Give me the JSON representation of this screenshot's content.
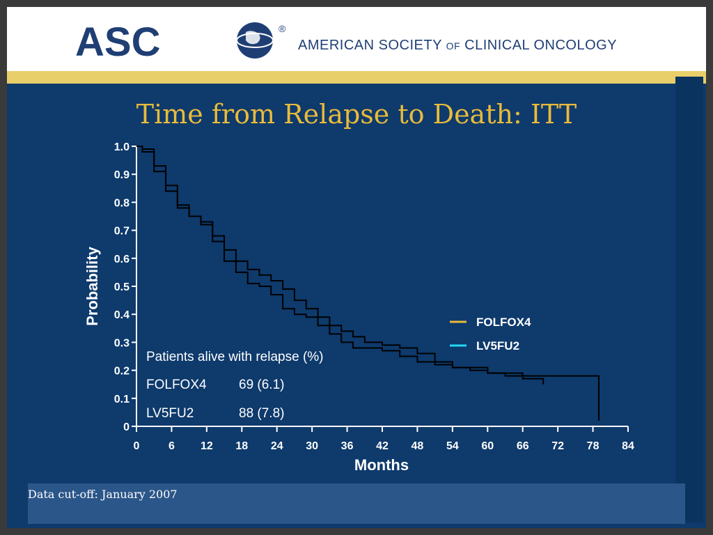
{
  "header": {
    "logo_text": "ASC",
    "registered": "®",
    "org_main": "AMERICAN SOCIETY ",
    "org_of": "OF",
    "org_end": " CLINICAL ONCOLOGY"
  },
  "colors": {
    "background": "#0e3a6c",
    "title": "#e9bb3b",
    "gold": "#e8cf6a",
    "folfox4": "#e9bb3b",
    "lv5fu2": "#26d9f2",
    "curve": "#000000"
  },
  "footer": {
    "text": "Data cut-off: January 2007"
  },
  "chart_data": {
    "type": "line",
    "title": "Time from Relapse to Death: ITT",
    "xlabel": "Months",
    "ylabel": "Probability",
    "xlim": [
      0,
      84
    ],
    "ylim": [
      0,
      1.0
    ],
    "xticks": [
      "0",
      "6",
      "12",
      "18",
      "24",
      "30",
      "36",
      "42",
      "48",
      "54",
      "60",
      "66",
      "72",
      "78",
      "84"
    ],
    "yticks": [
      "0",
      "0.1",
      "0.2",
      "0.3",
      "0.4",
      "0.5",
      "0.6",
      "0.7",
      "0.8",
      "0.9",
      "1.0"
    ],
    "grid": false,
    "legend_position": "right",
    "series": [
      {
        "name": "FOLFOX4",
        "color_key": "folfox4",
        "x": [
          0,
          1,
          3,
          5,
          7,
          9,
          11,
          13,
          15,
          17,
          19,
          21,
          23,
          25,
          27,
          29,
          31,
          33,
          35,
          37,
          39,
          42,
          45,
          48,
          51,
          54,
          57,
          60,
          63,
          66,
          69,
          69.5
        ],
        "y": [
          1.0,
          0.99,
          0.93,
          0.86,
          0.79,
          0.75,
          0.72,
          0.68,
          0.63,
          0.59,
          0.56,
          0.54,
          0.52,
          0.49,
          0.45,
          0.42,
          0.39,
          0.36,
          0.34,
          0.32,
          0.3,
          0.29,
          0.28,
          0.26,
          0.23,
          0.21,
          0.21,
          0.19,
          0.18,
          0.17,
          0.17,
          0.15
        ]
      },
      {
        "name": "LV5FU2",
        "color_key": "lv5fu2",
        "x": [
          0,
          1,
          3,
          5,
          7,
          9,
          11,
          13,
          15,
          17,
          19,
          21,
          23,
          25,
          27,
          29,
          31,
          33,
          35,
          37,
          39,
          42,
          45,
          48,
          51,
          54,
          57,
          60,
          63,
          66,
          70,
          74,
          78,
          79,
          79
        ],
        "y": [
          1.0,
          0.98,
          0.91,
          0.84,
          0.78,
          0.75,
          0.73,
          0.66,
          0.59,
          0.55,
          0.51,
          0.5,
          0.47,
          0.42,
          0.4,
          0.39,
          0.36,
          0.33,
          0.3,
          0.28,
          0.28,
          0.27,
          0.25,
          0.23,
          0.22,
          0.21,
          0.2,
          0.19,
          0.19,
          0.18,
          0.18,
          0.18,
          0.18,
          0.18,
          0.02
        ]
      }
    ],
    "annotation": {
      "heading": "Patients alive with relapse (%)",
      "rows": [
        {
          "arm": "FOLFOX4",
          "value": "69 (6.1)"
        },
        {
          "arm": "LV5FU2",
          "value": "88 (7.8)"
        }
      ]
    }
  }
}
